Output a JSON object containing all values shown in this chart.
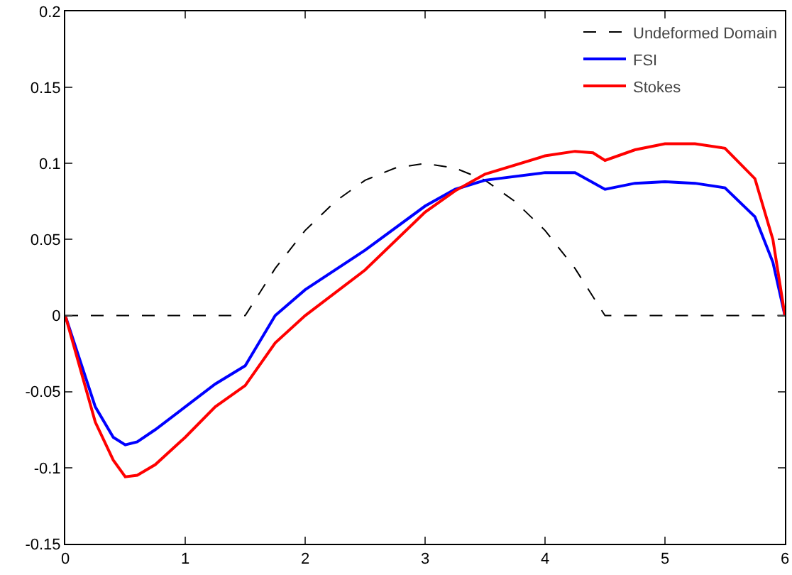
{
  "chart_data": {
    "type": "line",
    "xlim": [
      0,
      6
    ],
    "ylim": [
      -0.15,
      0.2
    ],
    "xticks": [
      0,
      1,
      2,
      3,
      4,
      5,
      6
    ],
    "yticks": [
      -0.15,
      -0.1,
      -0.05,
      0,
      0.05,
      0.1,
      0.15,
      0.2
    ],
    "grid": false,
    "legend": "top right",
    "marker": "none",
    "series": [
      {
        "name": "Undeformed Domain",
        "color": "#000000",
        "line_style": "dashed",
        "x": [
          0,
          1.5,
          1.75,
          2,
          2.25,
          2.5,
          2.75,
          3,
          3.25,
          3.5,
          3.75,
          4,
          4.25,
          4.5,
          6
        ],
        "values": [
          0,
          0,
          0.031,
          0.056,
          0.075,
          0.089,
          0.097,
          0.1,
          0.097,
          0.089,
          0.075,
          0.056,
          0.031,
          0,
          0
        ]
      },
      {
        "name": "FSI",
        "color": "#0000ff",
        "line_style": "solid",
        "x": [
          0,
          0.25,
          0.4,
          0.5,
          0.6,
          0.75,
          1,
          1.25,
          1.5,
          1.75,
          2,
          2.5,
          3,
          3.25,
          3.5,
          4,
          4.25,
          4.5,
          4.75,
          5,
          5.25,
          5.5,
          5.75,
          5.9,
          6
        ],
        "values": [
          0,
          -0.06,
          -0.08,
          -0.085,
          -0.083,
          -0.075,
          -0.06,
          -0.045,
          -0.033,
          0,
          0.017,
          0.043,
          0.072,
          0.083,
          0.089,
          0.094,
          0.094,
          0.083,
          0.087,
          0.088,
          0.087,
          0.084,
          0.065,
          0.035,
          0
        ]
      },
      {
        "name": "Stokes",
        "color": "#ff0000",
        "line_style": "solid",
        "x": [
          0,
          0.25,
          0.4,
          0.5,
          0.6,
          0.75,
          1,
          1.25,
          1.5,
          1.75,
          2,
          2.5,
          3,
          3.25,
          3.5,
          4,
          4.25,
          4.4,
          4.5,
          4.75,
          5,
          5.25,
          5.5,
          5.75,
          5.9,
          6
        ],
        "values": [
          0,
          -0.07,
          -0.095,
          -0.106,
          -0.105,
          -0.098,
          -0.08,
          -0.06,
          -0.046,
          -0.018,
          0,
          0.03,
          0.068,
          0.082,
          0.093,
          0.105,
          0.108,
          0.107,
          0.102,
          0.109,
          0.113,
          0.113,
          0.11,
          0.09,
          0.05,
          0
        ]
      }
    ]
  }
}
